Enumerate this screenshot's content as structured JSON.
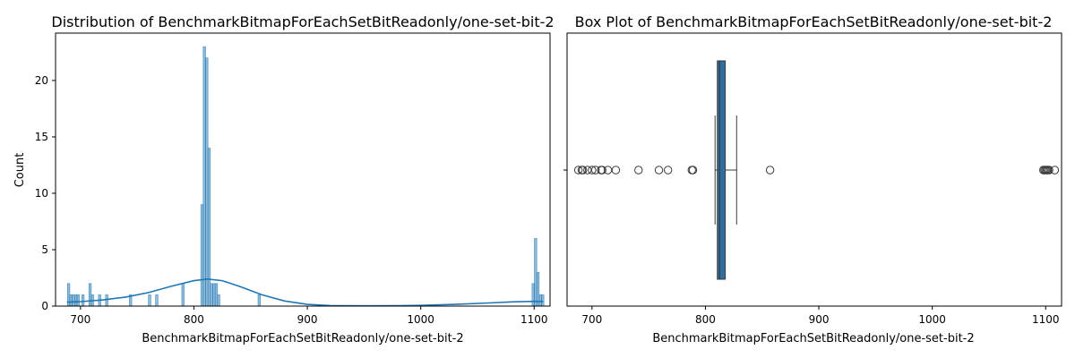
{
  "chart_data": [
    {
      "type": "histogram",
      "title": "Distribution of BenchmarkBitmapForEachSetBitReadonly/one-set-bit-2",
      "xlabel": "BenchmarkBitmapForEachSetBitReadonly/one-set-bit-2",
      "ylabel": "Count",
      "xlim": [
        678,
        1114
      ],
      "ylim": [
        0,
        24.2
      ],
      "xticks": [
        700,
        800,
        900,
        1000,
        1100
      ],
      "yticks": [
        0,
        5,
        10,
        15,
        20
      ],
      "bin_width": 2.1,
      "bins": [
        {
          "x": 688.5,
          "count": 2
        },
        {
          "x": 690.6,
          "count": 1
        },
        {
          "x": 692.7,
          "count": 1
        },
        {
          "x": 694.8,
          "count": 1
        },
        {
          "x": 696.9,
          "count": 1
        },
        {
          "x": 701.1,
          "count": 1
        },
        {
          "x": 707.4,
          "count": 2
        },
        {
          "x": 709.5,
          "count": 1
        },
        {
          "x": 715.8,
          "count": 1
        },
        {
          "x": 722.1,
          "count": 1
        },
        {
          "x": 743.1,
          "count": 1
        },
        {
          "x": 759.9,
          "count": 1
        },
        {
          "x": 766.2,
          "count": 1
        },
        {
          "x": 789.3,
          "count": 2
        },
        {
          "x": 806.1,
          "count": 9
        },
        {
          "x": 808.2,
          "count": 23
        },
        {
          "x": 810.3,
          "count": 22
        },
        {
          "x": 812.4,
          "count": 14
        },
        {
          "x": 814.5,
          "count": 2
        },
        {
          "x": 816.6,
          "count": 2
        },
        {
          "x": 818.7,
          "count": 2
        },
        {
          "x": 820.8,
          "count": 1
        },
        {
          "x": 856.5,
          "count": 1
        },
        {
          "x": 1098.1,
          "count": 2
        },
        {
          "x": 1100.2,
          "count": 6
        },
        {
          "x": 1102.3,
          "count": 3
        },
        {
          "x": 1104.4,
          "count": 1
        },
        {
          "x": 1106.5,
          "count": 1
        }
      ],
      "kde": [
        {
          "x": 688,
          "y": 0.35
        },
        {
          "x": 700,
          "y": 0.4
        },
        {
          "x": 720,
          "y": 0.55
        },
        {
          "x": 740,
          "y": 0.8
        },
        {
          "x": 760,
          "y": 1.2
        },
        {
          "x": 780,
          "y": 1.75
        },
        {
          "x": 800,
          "y": 2.25
        },
        {
          "x": 812,
          "y": 2.4
        },
        {
          "x": 825,
          "y": 2.25
        },
        {
          "x": 840,
          "y": 1.75
        },
        {
          "x": 860,
          "y": 1.0
        },
        {
          "x": 880,
          "y": 0.45
        },
        {
          "x": 900,
          "y": 0.15
        },
        {
          "x": 920,
          "y": 0.05
        },
        {
          "x": 950,
          "y": 0.02
        },
        {
          "x": 980,
          "y": 0.03
        },
        {
          "x": 1000,
          "y": 0.06
        },
        {
          "x": 1030,
          "y": 0.15
        },
        {
          "x": 1060,
          "y": 0.28
        },
        {
          "x": 1080,
          "y": 0.37
        },
        {
          "x": 1100,
          "y": 0.42
        },
        {
          "x": 1108,
          "y": 0.41
        }
      ],
      "bar_color": "#1f77b4",
      "grid": false
    },
    {
      "type": "box",
      "title": "Box Plot of BenchmarkBitmapForEachSetBitReadonly/one-set-bit-2",
      "xlabel": "BenchmarkBitmapForEachSetBitReadonly/one-set-bit-2",
      "xlim": [
        678,
        1114
      ],
      "xticks": [
        700,
        800,
        900,
        1000,
        1100
      ],
      "whisker_low": 808.5,
      "q1": 810.5,
      "median": 812.5,
      "q3": 817.5,
      "whisker_high": 827.5,
      "outliers": [
        688,
        691,
        692,
        696,
        700,
        703,
        708,
        709,
        714,
        721,
        741,
        759,
        767,
        788,
        789,
        857,
        1098,
        1099,
        1100,
        1101,
        1102,
        1103,
        1108
      ],
      "box_color": "#2f6e9e",
      "grid": false
    }
  ]
}
